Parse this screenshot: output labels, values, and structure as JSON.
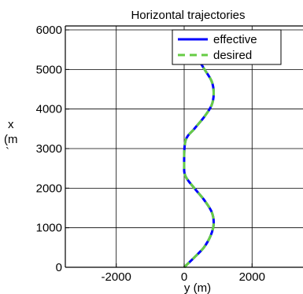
{
  "chart_data": {
    "type": "line",
    "title": "Horizontal trajectories",
    "xlabel": "y (m)",
    "ylabel_lines": [
      "x",
      "(m",
      "`"
    ],
    "xlim": [
      -3500,
      3500
    ],
    "ylim": [
      0,
      6100
    ],
    "xticks": [
      -2000,
      0,
      2000
    ],
    "xtick_labels": [
      "-2000",
      "0",
      "2000"
    ],
    "yticks": [
      0,
      1000,
      2000,
      3000,
      4000,
      5000,
      6000
    ],
    "ytick_labels": [
      "0",
      "1000",
      "2000",
      "3000",
      "4000",
      "5000",
      "6000"
    ],
    "grid": true,
    "legend_position": "top-right",
    "series": [
      {
        "name": "effective",
        "color": "#0000ff",
        "style": "solid",
        "x": [
          0,
          300,
          580,
          780,
          870,
          810,
          590,
          300,
          40,
          0,
          40,
          300,
          590,
          810,
          870,
          810,
          600,
          310,
          60,
          0,
          0
        ],
        "y": [
          0,
          250,
          500,
          800,
          1100,
          1400,
          1700,
          2000,
          2300,
          2600,
          3200,
          3500,
          3800,
          4100,
          4400,
          4700,
          5000,
          5400,
          5700,
          5900,
          6000
        ]
      },
      {
        "name": "desired",
        "color": "#66cc44",
        "style": "dashed",
        "x": [
          0,
          300,
          580,
          780,
          870,
          810,
          590,
          300,
          40,
          0,
          40,
          300,
          590,
          810,
          870,
          810,
          600,
          310,
          60,
          0,
          0
        ],
        "y": [
          0,
          250,
          500,
          800,
          1100,
          1400,
          1700,
          2000,
          2300,
          2600,
          3200,
          3500,
          3800,
          4100,
          4400,
          4700,
          5000,
          5400,
          5700,
          5900,
          6000
        ]
      }
    ]
  }
}
